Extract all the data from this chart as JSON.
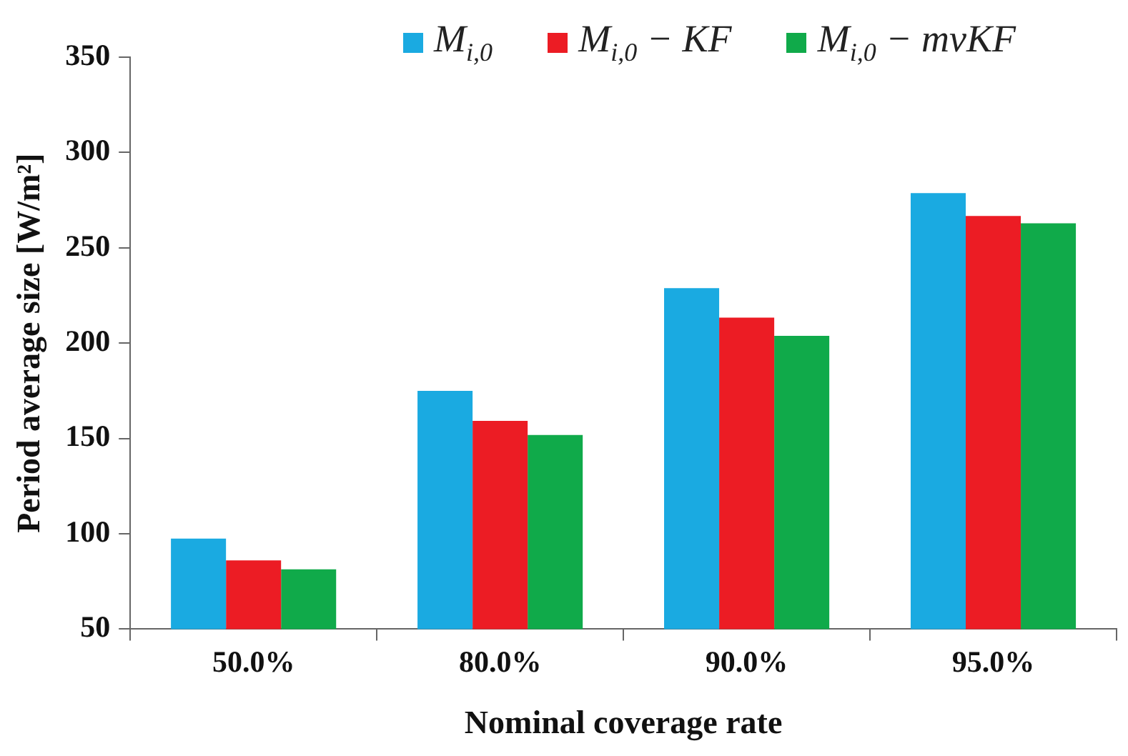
{
  "chart_data": {
    "type": "bar",
    "xlabel": "Nominal coverage rate",
    "ylabel": "Period average size [W/m²]",
    "categories": [
      "50.0%",
      "80.0%",
      "90.0%",
      "95.0%"
    ],
    "series": [
      {
        "name": "M$_{i,0}$",
        "color": "#1aaae1",
        "values": [
          97.5,
          175,
          228.8,
          278.7
        ]
      },
      {
        "name": "M$_{i,0}$ − KF",
        "color": "#ec1c24",
        "values": [
          86,
          159.2,
          213.4,
          266.7
        ]
      },
      {
        "name": "M$_{i,0}$ − mvKF",
        "color": "#10aa4a",
        "values": [
          81.4,
          151.8,
          203.8,
          262.9
        ]
      }
    ],
    "ylim": [
      50,
      350
    ],
    "yticks": [
      50,
      100,
      150,
      200,
      250,
      300,
      350
    ],
    "grid": false,
    "legend": "top"
  }
}
